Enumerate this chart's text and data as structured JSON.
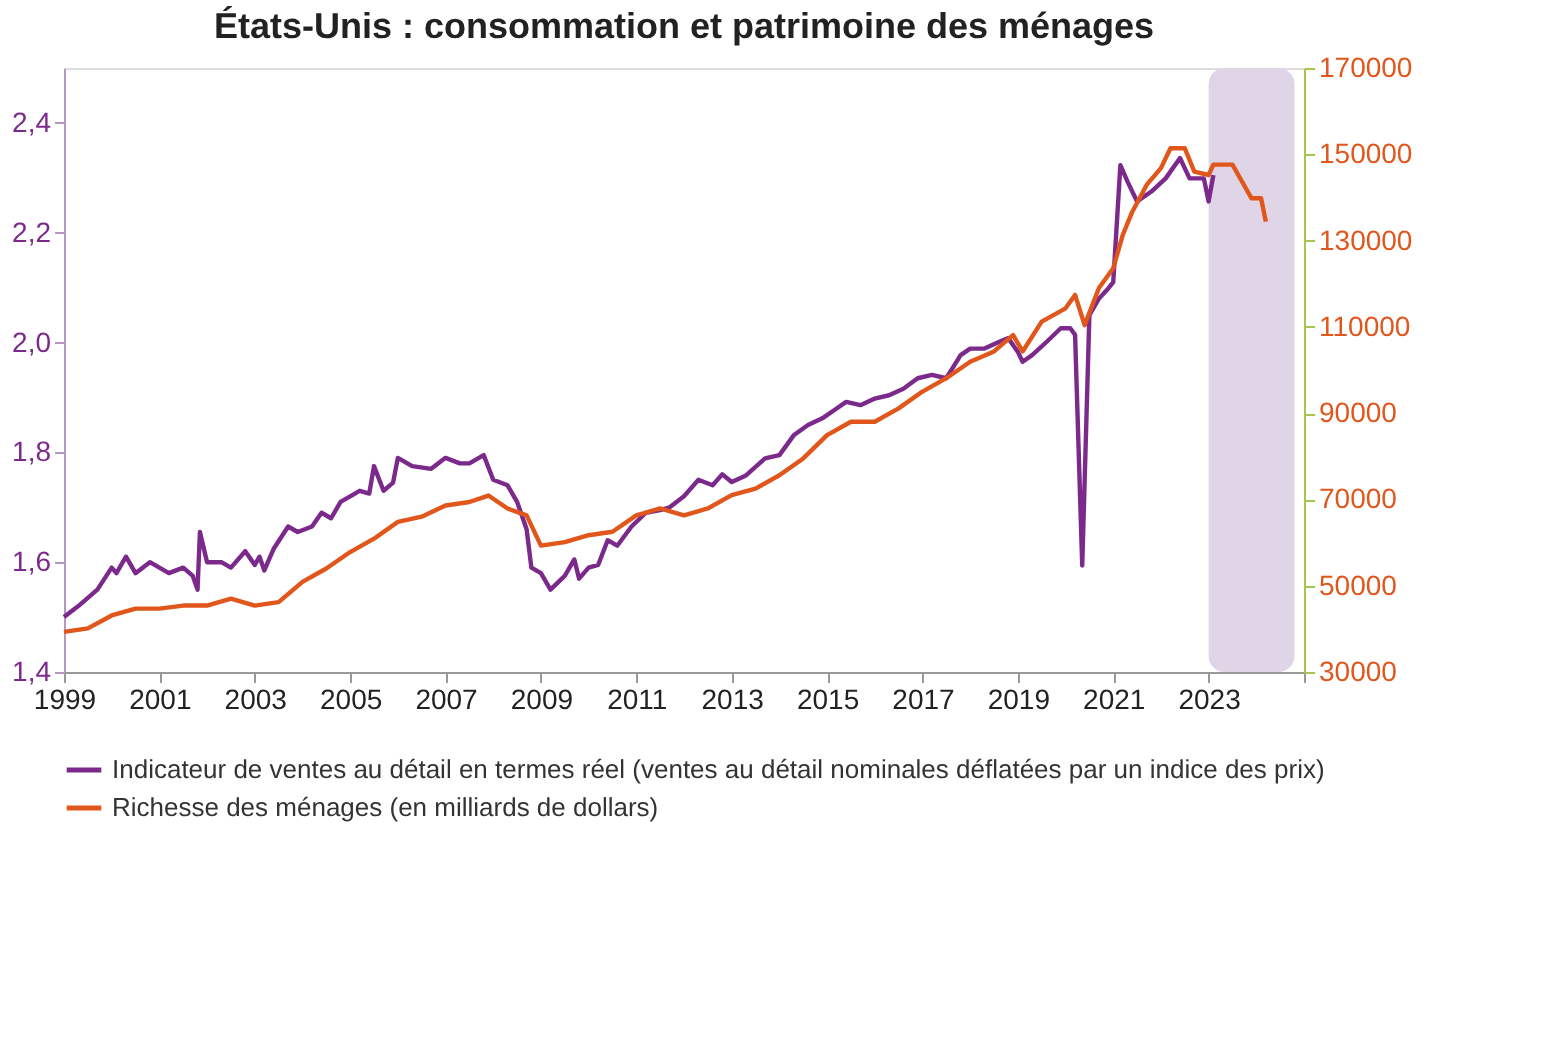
{
  "chart_data": {
    "type": "line",
    "title": "États-Unis : consommation et patrimoine des ménages",
    "xlim": [
      1999,
      2025
    ],
    "xticks": [
      1999,
      2001,
      2003,
      2005,
      2007,
      2009,
      2011,
      2013,
      2015,
      2017,
      2019,
      2021,
      2023,
      {
        "value": 2025,
        "label": null
      }
    ],
    "ylim": [
      1.4,
      2.5
    ],
    "yticks": [
      {
        "value": 1.4,
        "label": "1,4"
      },
      {
        "value": 1.6,
        "label": "1,6"
      },
      {
        "value": 1.8,
        "label": "1,8"
      },
      {
        "value": 2.0,
        "label": "2,0"
      },
      {
        "value": 2.2,
        "label": "2,2"
      },
      {
        "value": 2.4,
        "label": "2,4"
      }
    ],
    "y2lim": [
      30000,
      170000
    ],
    "y2ticks": [
      30000,
      50000,
      70000,
      90000,
      110000,
      130000,
      150000,
      170000
    ],
    "grid": false,
    "legend": "bottom",
    "marker": "none",
    "line_style": "solid",
    "bands": [
      {
        "axis": "x",
        "from": 2023.0,
        "to": 2024.8,
        "label": null,
        "color": "#e0d4e7"
      }
    ],
    "series": [
      {
        "name": "Indicateur de ventes au détail en termes réel (ventes au détail nominales déflatées par un indice des prix)",
        "color": "#7b2a8c",
        "x": [
          1999.0,
          1999.3,
          1999.7,
          2000.0,
          2000.1,
          2000.3,
          2000.5,
          2000.8,
          2001.2,
          2001.5,
          2001.7,
          2001.8,
          2001.85,
          2002.0,
          2002.3,
          2002.5,
          2002.8,
          2003.0,
          2003.1,
          2003.2,
          2003.4,
          2003.7,
          2003.9,
          2004.2,
          2004.4,
          2004.6,
          2004.8,
          2005.0,
          2005.2,
          2005.4,
          2005.5,
          2005.7,
          2005.9,
          2006.0,
          2006.3,
          2006.7,
          2007.0,
          2007.3,
          2007.5,
          2007.8,
          2008.0,
          2008.3,
          2008.5,
          2008.7,
          2008.8,
          2009.0,
          2009.2,
          2009.5,
          2009.7,
          2009.8,
          2010.0,
          2010.2,
          2010.4,
          2010.6,
          2010.9,
          2011.2,
          2011.5,
          2011.7,
          2012.0,
          2012.3,
          2012.6,
          2012.8,
          2013.0,
          2013.3,
          2013.7,
          2014.0,
          2014.3,
          2014.6,
          2014.9,
          2015.2,
          2015.4,
          2015.7,
          2016.0,
          2016.3,
          2016.6,
          2016.9,
          2017.2,
          2017.5,
          2017.8,
          2018.0,
          2018.3,
          2018.6,
          2018.8,
          2019.0,
          2019.1,
          2019.3,
          2019.6,
          2019.9,
          2020.1,
          2020.2,
          2020.35,
          2020.5,
          2020.7,
          2020.9,
          2021.0,
          2021.15,
          2021.3,
          2021.5,
          2021.8,
          2022.1,
          2022.4,
          2022.6,
          2022.9,
          2023.0,
          2023.1
        ],
        "values": [
          1.5,
          1.52,
          1.55,
          1.59,
          1.58,
          1.61,
          1.58,
          1.6,
          1.58,
          1.59,
          1.575,
          1.55,
          1.655,
          1.6,
          1.6,
          1.59,
          1.62,
          1.595,
          1.61,
          1.585,
          1.625,
          1.665,
          1.655,
          1.665,
          1.69,
          1.68,
          1.71,
          1.72,
          1.73,
          1.725,
          1.775,
          1.73,
          1.745,
          1.79,
          1.775,
          1.77,
          1.79,
          1.78,
          1.78,
          1.795,
          1.75,
          1.74,
          1.71,
          1.66,
          1.59,
          1.58,
          1.55,
          1.575,
          1.605,
          1.57,
          1.59,
          1.595,
          1.64,
          1.63,
          1.665,
          1.69,
          1.695,
          1.7,
          1.72,
          1.75,
          1.74,
          1.76,
          1.746,
          1.758,
          1.789,
          1.795,
          1.831,
          1.85,
          1.862,
          1.88,
          1.892,
          1.886,
          1.898,
          1.904,
          1.916,
          1.935,
          1.941,
          1.935,
          1.977,
          1.989,
          1.989,
          2.001,
          2.008,
          1.983,
          1.965,
          1.977,
          2.001,
          2.026,
          2.026,
          2.014,
          1.594,
          2.05,
          2.08,
          2.099,
          2.11,
          2.323,
          2.293,
          2.257,
          2.275,
          2.299,
          2.336,
          2.299,
          2.299,
          2.257,
          2.305
        ]
      },
      {
        "name": "Richesse des ménages (en milliards de dollars)",
        "color": "#e0561b",
        "axis": "y2",
        "x": [
          1999.0,
          1999.5,
          2000.0,
          2000.5,
          2001.0,
          2001.5,
          2002.0,
          2002.5,
          2003.0,
          2003.5,
          2004.0,
          2004.5,
          2005.0,
          2005.5,
          2006.0,
          2006.5,
          2007.0,
          2007.5,
          2007.9,
          2008.3,
          2008.7,
          2009.0,
          2009.5,
          2010.0,
          2010.5,
          2011.0,
          2011.5,
          2012.0,
          2012.5,
          2013.0,
          2013.5,
          2014.0,
          2014.5,
          2015.0,
          2015.5,
          2016.0,
          2016.5,
          2017.0,
          2017.5,
          2018.0,
          2018.5,
          2018.9,
          2019.1,
          2019.5,
          2020.0,
          2020.2,
          2020.4,
          2020.7,
          2021.0,
          2021.2,
          2021.4,
          2021.7,
          2022.0,
          2022.2,
          2022.5,
          2022.7,
          2023.0,
          2023.1,
          2023.5,
          2023.7,
          2023.9,
          2024.1,
          2024.2
        ],
        "values": [
          39300,
          40100,
          43100,
          44700,
          44700,
          45400,
          45400,
          47000,
          45400,
          46200,
          50900,
          54000,
          57800,
          60900,
          64800,
          66000,
          68600,
          69400,
          70900,
          67900,
          66300,
          59300,
          60100,
          61700,
          62500,
          66300,
          67900,
          66300,
          67900,
          71000,
          72500,
          75600,
          79500,
          84900,
          88000,
          88000,
          91100,
          95000,
          98100,
          101900,
          104300,
          108100,
          104300,
          111200,
          114300,
          117400,
          110400,
          119000,
          123600,
          131300,
          136700,
          142900,
          146800,
          151400,
          151400,
          146000,
          145200,
          147600,
          147600,
          143700,
          139800,
          139800,
          134400
        ]
      }
    ]
  }
}
